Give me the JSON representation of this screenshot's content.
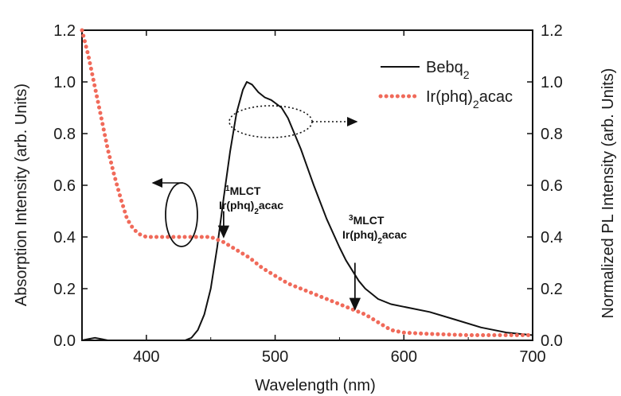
{
  "chart_data": {
    "type": "line",
    "xlabel": "Wavelength (nm)",
    "ylabel_left": "Absorption Intensity (arb. Units)",
    "ylabel_right": "Normalized PL Intensity (arb. Units)",
    "xlim": [
      350,
      700
    ],
    "ylim_left": [
      0.0,
      1.2
    ],
    "ylim_right": [
      0.0,
      1.2
    ],
    "x_ticks": [
      "400",
      "500",
      "600",
      "700"
    ],
    "y_ticks_left": [
      "0.0",
      "0.2",
      "0.4",
      "0.6",
      "0.8",
      "1.0",
      "1.2"
    ],
    "y_ticks_right": [
      "0.0",
      "0.2",
      "0.4",
      "0.6",
      "0.8",
      "1.0",
      "1.2"
    ],
    "legend_position": "top-right",
    "series": [
      {
        "name": "Bebq2",
        "axis": "right",
        "style": "solid",
        "color": "#111111",
        "points": [
          [
            350,
            0.0
          ],
          [
            355,
            0.005
          ],
          [
            360,
            0.01
          ],
          [
            365,
            0.005
          ],
          [
            370,
            0.0
          ],
          [
            430,
            0.0
          ],
          [
            435,
            0.01
          ],
          [
            440,
            0.04
          ],
          [
            445,
            0.1
          ],
          [
            450,
            0.2
          ],
          [
            455,
            0.36
          ],
          [
            460,
            0.55
          ],
          [
            465,
            0.73
          ],
          [
            470,
            0.88
          ],
          [
            475,
            0.97
          ],
          [
            478,
            1.0
          ],
          [
            482,
            0.99
          ],
          [
            487,
            0.96
          ],
          [
            492,
            0.94
          ],
          [
            497,
            0.93
          ],
          [
            505,
            0.9
          ],
          [
            510,
            0.86
          ],
          [
            515,
            0.8
          ],
          [
            520,
            0.74
          ],
          [
            525,
            0.67
          ],
          [
            530,
            0.6
          ],
          [
            540,
            0.47
          ],
          [
            550,
            0.36
          ],
          [
            555,
            0.31
          ],
          [
            560,
            0.27
          ],
          [
            565,
            0.23
          ],
          [
            570,
            0.2
          ],
          [
            575,
            0.18
          ],
          [
            580,
            0.16
          ],
          [
            590,
            0.14
          ],
          [
            600,
            0.13
          ],
          [
            620,
            0.11
          ],
          [
            640,
            0.08
          ],
          [
            660,
            0.05
          ],
          [
            680,
            0.03
          ],
          [
            700,
            0.02
          ]
        ]
      },
      {
        "name": "Ir(phq)2acac",
        "axis": "left",
        "style": "dotted",
        "color": "#f06a5a",
        "points": [
          [
            350,
            1.2
          ],
          [
            355,
            1.1
          ],
          [
            360,
            0.98
          ],
          [
            365,
            0.86
          ],
          [
            370,
            0.74
          ],
          [
            375,
            0.64
          ],
          [
            380,
            0.55
          ],
          [
            385,
            0.47
          ],
          [
            390,
            0.43
          ],
          [
            395,
            0.41
          ],
          [
            400,
            0.4
          ],
          [
            420,
            0.4
          ],
          [
            440,
            0.4
          ],
          [
            450,
            0.4
          ],
          [
            455,
            0.39
          ],
          [
            460,
            0.38
          ],
          [
            470,
            0.35
          ],
          [
            480,
            0.32
          ],
          [
            490,
            0.28
          ],
          [
            500,
            0.25
          ],
          [
            510,
            0.22
          ],
          [
            520,
            0.2
          ],
          [
            530,
            0.18
          ],
          [
            540,
            0.16
          ],
          [
            550,
            0.14
          ],
          [
            560,
            0.12
          ],
          [
            570,
            0.1
          ],
          [
            580,
            0.07
          ],
          [
            590,
            0.04
          ],
          [
            600,
            0.03
          ],
          [
            620,
            0.025
          ],
          [
            650,
            0.02
          ],
          [
            700,
            0.02
          ]
        ]
      }
    ],
    "legend": [
      {
        "label": "Bebq",
        "sub": "2",
        "suffix": ""
      },
      {
        "label": "Ir(phq)",
        "sub": "2",
        "suffix": "acac"
      }
    ],
    "annotations": [
      {
        "sup": "1",
        "line1": "MLCT",
        "line2_pre": "Ir(phq)",
        "line2_sub": "2",
        "line2_post": "acac",
        "arrow_x": 460,
        "arrow_y_from": 0.5,
        "arrow_y_to": 0.4
      },
      {
        "sup": "3",
        "line1": "MLCT",
        "line2_pre": "Ir(phq)",
        "line2_sub": "2",
        "line2_post": "acac",
        "arrow_x": 562,
        "arrow_y_from": 0.3,
        "arrow_y_to": 0.12
      }
    ]
  }
}
